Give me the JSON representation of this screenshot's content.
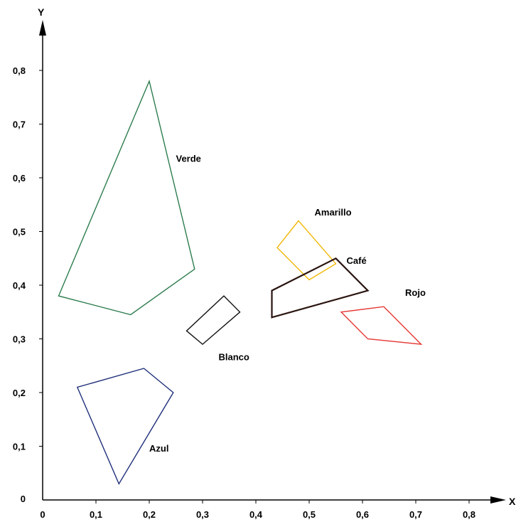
{
  "chart_data": {
    "type": "polygon",
    "xlabel": "X",
    "ylabel": "Y",
    "xlim": [
      0,
      0.85
    ],
    "ylim": [
      0,
      0.85
    ],
    "x_ticks": [
      "0",
      "0,1",
      "0,2",
      "0,3",
      "0,4",
      "0,5",
      "0,6",
      "0,7",
      "0,8"
    ],
    "y_ticks": [
      "0",
      "0,1",
      "0,2",
      "0,3",
      "0,4",
      "0,5",
      "0,6",
      "0,7",
      "0,8"
    ],
    "grid": false,
    "legend": "none",
    "series": [
      {
        "name": "Verde",
        "color": "#2e7d4f",
        "points": [
          [
            0.2,
            0.78
          ],
          [
            0.285,
            0.43
          ],
          [
            0.165,
            0.345
          ],
          [
            0.03,
            0.38
          ]
        ],
        "label_at": [
          0.25,
          0.63
        ]
      },
      {
        "name": "Azul",
        "color": "#1f2f7a",
        "points": [
          [
            0.19,
            0.245
          ],
          [
            0.245,
            0.2
          ],
          [
            0.143,
            0.03
          ],
          [
            0.065,
            0.21
          ]
        ],
        "label_at": [
          0.2,
          0.09
        ]
      },
      {
        "name": "Blanco",
        "color": "#111111",
        "points": [
          [
            0.34,
            0.38
          ],
          [
            0.37,
            0.35
          ],
          [
            0.3,
            0.29
          ],
          [
            0.27,
            0.315
          ]
        ],
        "label_at": [
          0.33,
          0.26
        ]
      },
      {
        "name": "Amarillo",
        "color": "#f2b705",
        "points": [
          [
            0.48,
            0.52
          ],
          [
            0.55,
            0.44
          ],
          [
            0.5,
            0.41
          ],
          [
            0.44,
            0.47
          ]
        ],
        "label_at": [
          0.51,
          0.53
        ]
      },
      {
        "name": "Café",
        "color": "#2a1510",
        "points": [
          [
            0.55,
            0.45
          ],
          [
            0.61,
            0.39
          ],
          [
            0.43,
            0.34
          ],
          [
            0.43,
            0.39
          ]
        ],
        "label_at": [
          0.57,
          0.44
        ]
      },
      {
        "name": "Rojo",
        "color": "#e53935",
        "points": [
          [
            0.64,
            0.36
          ],
          [
            0.71,
            0.29
          ],
          [
            0.61,
            0.3
          ],
          [
            0.56,
            0.35
          ]
        ],
        "label_at": [
          0.68,
          0.38
        ]
      }
    ]
  }
}
